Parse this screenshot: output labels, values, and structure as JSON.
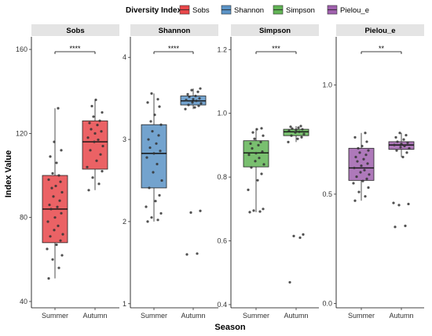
{
  "legend": {
    "title": "Diversity Index",
    "items": [
      {
        "label": "Sobs",
        "color": "#E8474A"
      },
      {
        "label": "Shannon",
        "color": "#5B93C6"
      },
      {
        "label": "Simpson",
        "color": "#62B456"
      },
      {
        "label": "Pielou_e",
        "color": "#A061AE"
      }
    ]
  },
  "axes": {
    "ylabel": "Index Value",
    "xlabel": "Season"
  },
  "colors": {
    "panel_strip": "#e4e4e4",
    "point": "#333333",
    "box_line": "#222222"
  },
  "chart_data": [
    {
      "type": "box",
      "title": "Sobs",
      "categories": [
        "Summer",
        "Autumn"
      ],
      "ylim": [
        37,
        166
      ],
      "yticks": [
        40,
        80,
        120,
        160
      ],
      "significance": "****",
      "color": "#E8474A",
      "boxes": [
        {
          "q1": 68,
          "median": 84,
          "q3": 100,
          "whisker_low": 51,
          "whisker_high": 132
        },
        {
          "q1": 103,
          "median": 116,
          "q3": 126,
          "whisker_low": 93,
          "whisker_high": 136
        }
      ],
      "points": [
        [
          51,
          56,
          60,
          62,
          65,
          67,
          69,
          71,
          72,
          74,
          76,
          78,
          80,
          82,
          84,
          85,
          86,
          88,
          90,
          92,
          94,
          95,
          97,
          98,
          100,
          101,
          106,
          109,
          112,
          116,
          132
        ],
        [
          93,
          96,
          99,
          102,
          104,
          107,
          110,
          112,
          114,
          116,
          117,
          118,
          120,
          121,
          122,
          124,
          125,
          126,
          128,
          130,
          133,
          136
        ]
      ]
    },
    {
      "type": "box",
      "title": "Shannon",
      "categories": [
        "Summer",
        "Autumn"
      ],
      "ylim": [
        0.95,
        4.25
      ],
      "yticks": [
        1,
        2,
        3,
        4
      ],
      "significance": "****",
      "color": "#5B93C6",
      "boxes": [
        {
          "q1": 2.41,
          "median": 2.83,
          "q3": 3.18,
          "whisker_low": 2.0,
          "whisker_high": 3.56
        },
        {
          "q1": 3.42,
          "median": 3.47,
          "q3": 3.53,
          "whisker_low": 3.37,
          "whisker_high": 3.62
        }
      ],
      "points": [
        [
          2.0,
          2.02,
          2.05,
          2.1,
          2.18,
          2.25,
          2.32,
          2.41,
          2.5,
          2.6,
          2.7,
          2.78,
          2.83,
          2.86,
          2.9,
          2.95,
          3.0,
          3.05,
          3.1,
          3.18,
          3.22,
          3.3,
          3.4,
          3.45,
          3.49,
          3.56
        ],
        [
          1.6,
          1.61,
          2.11,
          2.13,
          3.37,
          3.39,
          3.41,
          3.42,
          3.44,
          3.45,
          3.47,
          3.48,
          3.49,
          3.5,
          3.52,
          3.53,
          3.55,
          3.58,
          3.6,
          3.62
        ]
      ]
    },
    {
      "type": "box",
      "title": "Simpson",
      "categories": [
        "Summer",
        "Autumn"
      ],
      "ylim": [
        0.39,
        1.24
      ],
      "yticks": [
        0.4,
        0.6,
        0.8,
        1.0,
        1.2
      ],
      "significance": "***",
      "color": "#62B456",
      "boxes": [
        {
          "q1": 0.832,
          "median": 0.876,
          "q3": 0.914,
          "whisker_low": 0.69,
          "whisker_high": 0.953
        },
        {
          "q1": 0.93,
          "median": 0.942,
          "q3": 0.95,
          "whisker_low": 0.91,
          "whisker_high": 0.96
        }
      ],
      "points": [
        [
          0.69,
          0.692,
          0.695,
          0.7,
          0.76,
          0.79,
          0.81,
          0.83,
          0.84,
          0.85,
          0.86,
          0.87,
          0.875,
          0.88,
          0.89,
          0.9,
          0.905,
          0.91,
          0.92,
          0.93,
          0.94,
          0.95,
          0.953
        ],
        [
          0.47,
          0.61,
          0.615,
          0.62,
          0.91,
          0.92,
          0.925,
          0.93,
          0.935,
          0.94,
          0.942,
          0.945,
          0.948,
          0.95,
          0.952,
          0.955,
          0.958,
          0.96
        ]
      ]
    },
    {
      "type": "box",
      "title": "Pielou_e",
      "categories": [
        "Summer",
        "Autumn"
      ],
      "ylim": [
        -0.02,
        1.22
      ],
      "yticks": [
        0.0,
        0.5,
        1.0
      ],
      "significance": "**",
      "color": "#A061AE",
      "boxes": [
        {
          "q1": 0.563,
          "median": 0.62,
          "q3": 0.71,
          "whisker_low": 0.47,
          "whisker_high": 0.78
        },
        {
          "q1": 0.705,
          "median": 0.725,
          "q3": 0.74,
          "whisker_low": 0.67,
          "whisker_high": 0.78
        }
      ],
      "points": [
        [
          0.47,
          0.49,
          0.51,
          0.53,
          0.55,
          0.56,
          0.57,
          0.58,
          0.59,
          0.6,
          0.61,
          0.62,
          0.63,
          0.64,
          0.65,
          0.66,
          0.67,
          0.68,
          0.69,
          0.7,
          0.71,
          0.72,
          0.74,
          0.76,
          0.78
        ],
        [
          0.35,
          0.355,
          0.45,
          0.455,
          0.46,
          0.67,
          0.69,
          0.7,
          0.71,
          0.715,
          0.72,
          0.725,
          0.73,
          0.735,
          0.74,
          0.75,
          0.76,
          0.77,
          0.78
        ]
      ]
    }
  ]
}
